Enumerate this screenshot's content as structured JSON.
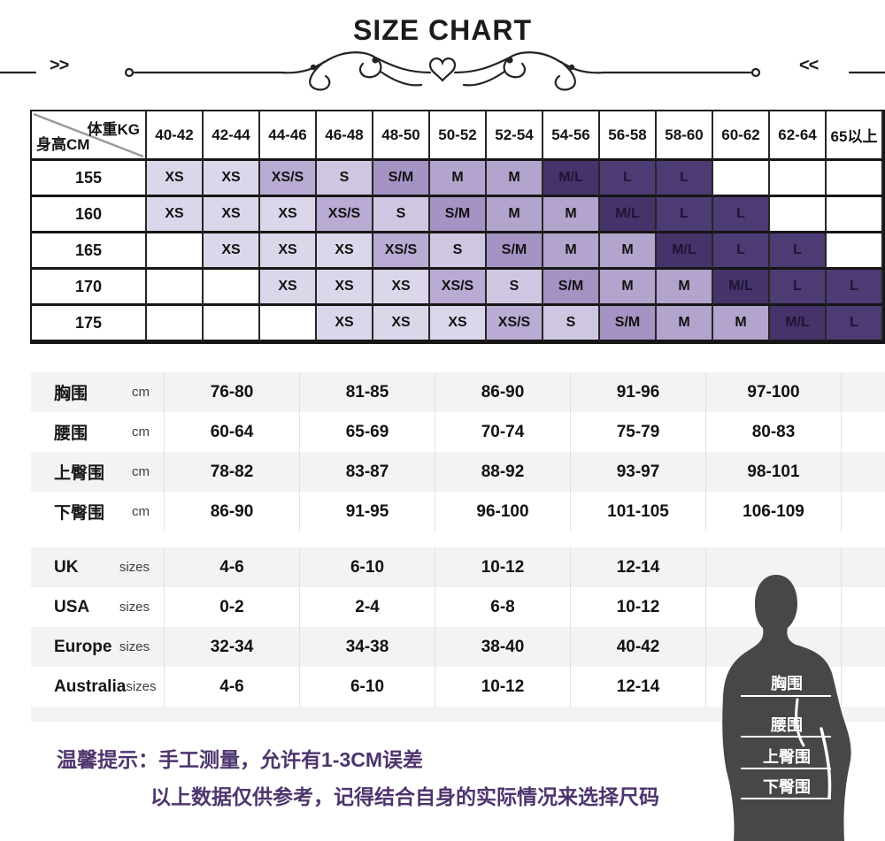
{
  "title": "SIZE CHART",
  "ornament": {
    "left_glyphs": ">>",
    "right_glyphs": "<<"
  },
  "size_matrix": {
    "corner": {
      "top": "体重KG",
      "bottom": "身高CM"
    },
    "weight_columns": [
      "40-42",
      "42-44",
      "44-46",
      "46-48",
      "48-50",
      "50-52",
      "52-54",
      "54-56",
      "56-58",
      "58-60",
      "60-62",
      "62-64",
      "65以上"
    ],
    "rows": [
      {
        "height": "155",
        "cells": [
          "XS",
          "XS",
          "XS/S",
          "S",
          "S/M",
          "M",
          "M",
          "M/L",
          "L",
          "L",
          "",
          "",
          ""
        ]
      },
      {
        "height": "160",
        "cells": [
          "XS",
          "XS",
          "XS",
          "XS/S",
          "S",
          "S/M",
          "M",
          "M",
          "M/L",
          "L",
          "L",
          "",
          ""
        ]
      },
      {
        "height": "165",
        "cells": [
          "",
          "XS",
          "XS",
          "XS",
          "XS/S",
          "S",
          "S/M",
          "M",
          "M",
          "M/L",
          "L",
          "L",
          ""
        ]
      },
      {
        "height": "170",
        "cells": [
          "",
          "",
          "XS",
          "XS",
          "XS",
          "XS/S",
          "S",
          "S/M",
          "M",
          "M",
          "M/L",
          "L",
          "L"
        ]
      },
      {
        "height": "175",
        "cells": [
          "",
          "",
          "",
          "XS",
          "XS",
          "XS",
          "XS/S",
          "S",
          "S/M",
          "M",
          "M",
          "M/L",
          "L"
        ]
      }
    ],
    "cell_colors": {
      "XS": "#dcd6ea",
      "XS/S": "#b9abd3",
      "S": "#cfc7e1",
      "S/M": "#a493c3",
      "M": "#b2a4cc",
      "M/L": "#46336a",
      "L": "#4d3b73",
      "": "#ffffff"
    },
    "dark_cells": [
      "M/L",
      "L"
    ]
  },
  "measurements": {
    "cm_rows": [
      {
        "label": "胸围",
        "unit": "cm",
        "values": [
          "76-80",
          "81-85",
          "86-90",
          "91-96",
          "97-100"
        ]
      },
      {
        "label": "腰围",
        "unit": "cm",
        "values": [
          "60-64",
          "65-69",
          "70-74",
          "75-79",
          "80-83"
        ]
      },
      {
        "label": "上臀围",
        "unit": "cm",
        "values": [
          "78-82",
          "83-87",
          "88-92",
          "93-97",
          "98-101"
        ]
      },
      {
        "label": "下臀围",
        "unit": "cm",
        "values": [
          "86-90",
          "91-95",
          "96-100",
          "101-105",
          "106-109"
        ]
      }
    ],
    "size_rows": [
      {
        "label": "UK",
        "unit": "sizes",
        "values": [
          "4-6",
          "6-10",
          "10-12",
          "12-14",
          ""
        ]
      },
      {
        "label": "USA",
        "unit": "sizes",
        "values": [
          "0-2",
          "2-4",
          "6-8",
          "10-12",
          ""
        ]
      },
      {
        "label": "Europe",
        "unit": "sizes",
        "values": [
          "32-34",
          "34-38",
          "38-40",
          "40-42",
          ""
        ]
      },
      {
        "label": "Australia",
        "unit": "sizes",
        "values": [
          "4-6",
          "6-10",
          "10-12",
          "12-14",
          ""
        ]
      }
    ]
  },
  "figure_labels": [
    "胸围",
    "腰围",
    "上臀围",
    "下臀围"
  ],
  "notes": {
    "line1": "温馨提示：手工测量，允许有1-3CM误差",
    "line2": "以上数据仅供参考，记得结合自身的实际情况来选择尺码"
  },
  "colors": {
    "note_text": "#4e356e",
    "silhouette": "#474747",
    "stripe_gray": "#f3f3f3",
    "grid_line": "#161616"
  }
}
